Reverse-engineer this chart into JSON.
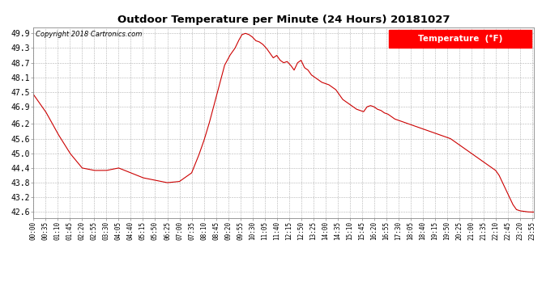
{
  "title": "Outdoor Temperature per Minute (24 Hours) 20181027",
  "copyright": "Copyright 2018 Cartronics.com",
  "legend_label": "Temperature  (°F)",
  "line_color": "#cc0000",
  "background_color": "#ffffff",
  "plot_bg_color": "#ffffff",
  "grid_color": "#aaaaaa",
  "yticks": [
    42.6,
    43.2,
    43.8,
    44.4,
    45.0,
    45.6,
    46.2,
    46.9,
    47.5,
    48.1,
    48.7,
    49.3,
    49.9
  ],
  "ylim": [
    42.35,
    50.15
  ],
  "xtick_interval_minutes": 35,
  "total_minutes": 1440,
  "key_points": [
    [
      0,
      47.4
    ],
    [
      35,
      46.7
    ],
    [
      70,
      45.8
    ],
    [
      105,
      45.0
    ],
    [
      140,
      44.4
    ],
    [
      175,
      44.3
    ],
    [
      210,
      44.3
    ],
    [
      245,
      44.4
    ],
    [
      280,
      44.2
    ],
    [
      315,
      44.0
    ],
    [
      350,
      43.9
    ],
    [
      385,
      43.8
    ],
    [
      420,
      43.85
    ],
    [
      455,
      44.2
    ],
    [
      475,
      44.9
    ],
    [
      490,
      45.5
    ],
    [
      505,
      46.2
    ],
    [
      520,
      47.0
    ],
    [
      535,
      47.8
    ],
    [
      550,
      48.6
    ],
    [
      565,
      49.0
    ],
    [
      580,
      49.3
    ],
    [
      590,
      49.6
    ],
    [
      600,
      49.85
    ],
    [
      610,
      49.9
    ],
    [
      620,
      49.85
    ],
    [
      630,
      49.75
    ],
    [
      640,
      49.6
    ],
    [
      650,
      49.55
    ],
    [
      660,
      49.45
    ],
    [
      670,
      49.3
    ],
    [
      680,
      49.1
    ],
    [
      690,
      48.9
    ],
    [
      700,
      49.0
    ],
    [
      710,
      48.8
    ],
    [
      720,
      48.7
    ],
    [
      730,
      48.75
    ],
    [
      740,
      48.6
    ],
    [
      750,
      48.4
    ],
    [
      760,
      48.7
    ],
    [
      770,
      48.8
    ],
    [
      780,
      48.5
    ],
    [
      790,
      48.4
    ],
    [
      800,
      48.2
    ],
    [
      810,
      48.1
    ],
    [
      820,
      48.0
    ],
    [
      830,
      47.9
    ],
    [
      840,
      47.85
    ],
    [
      850,
      47.8
    ],
    [
      860,
      47.7
    ],
    [
      870,
      47.6
    ],
    [
      880,
      47.4
    ],
    [
      890,
      47.2
    ],
    [
      900,
      47.1
    ],
    [
      910,
      47.0
    ],
    [
      920,
      46.9
    ],
    [
      930,
      46.8
    ],
    [
      940,
      46.75
    ],
    [
      950,
      46.7
    ],
    [
      960,
      46.9
    ],
    [
      970,
      46.95
    ],
    [
      980,
      46.9
    ],
    [
      990,
      46.8
    ],
    [
      1000,
      46.75
    ],
    [
      1010,
      46.65
    ],
    [
      1020,
      46.6
    ],
    [
      1030,
      46.5
    ],
    [
      1040,
      46.4
    ],
    [
      1050,
      46.35
    ],
    [
      1060,
      46.3
    ],
    [
      1070,
      46.25
    ],
    [
      1080,
      46.2
    ],
    [
      1090,
      46.15
    ],
    [
      1100,
      46.1
    ],
    [
      1110,
      46.05
    ],
    [
      1120,
      46.0
    ],
    [
      1130,
      45.95
    ],
    [
      1140,
      45.9
    ],
    [
      1150,
      45.85
    ],
    [
      1160,
      45.8
    ],
    [
      1170,
      45.75
    ],
    [
      1180,
      45.7
    ],
    [
      1190,
      45.65
    ],
    [
      1200,
      45.6
    ],
    [
      1210,
      45.5
    ],
    [
      1220,
      45.4
    ],
    [
      1230,
      45.3
    ],
    [
      1240,
      45.2
    ],
    [
      1250,
      45.1
    ],
    [
      1260,
      45.0
    ],
    [
      1270,
      44.9
    ],
    [
      1280,
      44.8
    ],
    [
      1290,
      44.7
    ],
    [
      1300,
      44.6
    ],
    [
      1310,
      44.5
    ],
    [
      1320,
      44.4
    ],
    [
      1330,
      44.3
    ],
    [
      1340,
      44.1
    ],
    [
      1350,
      43.8
    ],
    [
      1360,
      43.5
    ],
    [
      1370,
      43.2
    ],
    [
      1380,
      42.9
    ],
    [
      1390,
      42.7
    ],
    [
      1400,
      42.65
    ],
    [
      1410,
      42.63
    ],
    [
      1420,
      42.61
    ],
    [
      1430,
      42.6
    ],
    [
      1440,
      42.6
    ]
  ]
}
